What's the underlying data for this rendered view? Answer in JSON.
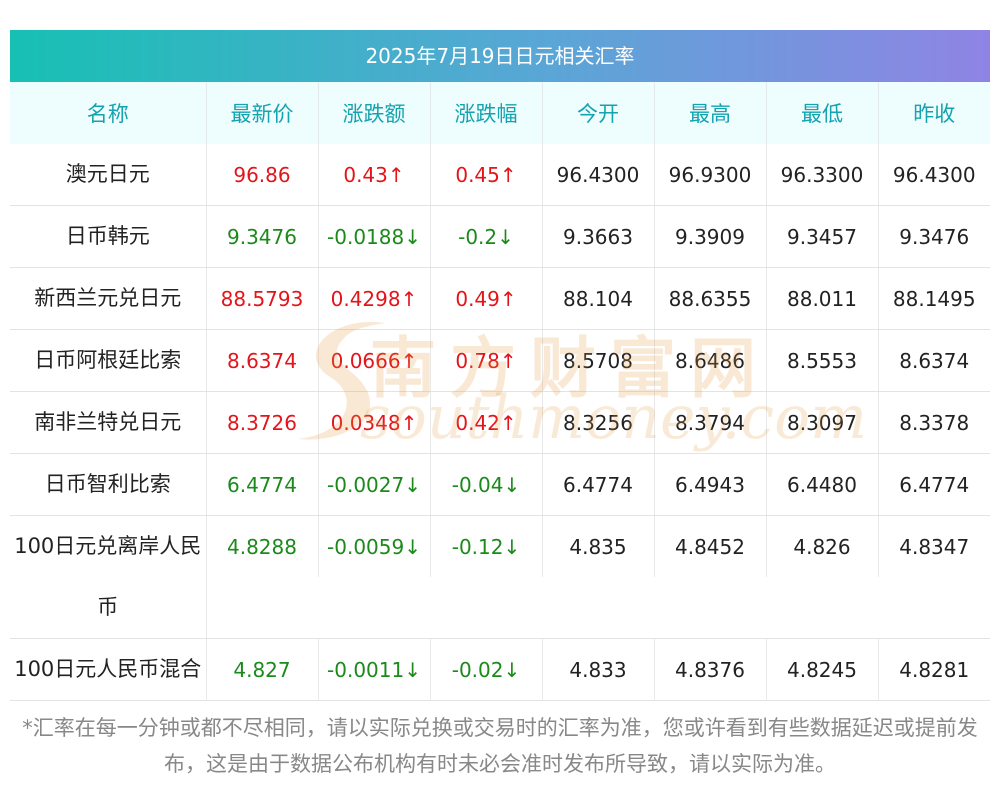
{
  "title": "2025年7月19日日元相关汇率",
  "headers": [
    "名称",
    "最新价",
    "涨跌额",
    "涨跌幅",
    "今开",
    "最高",
    "最低",
    "昨收"
  ],
  "rows": [
    {
      "name": "澳元日元",
      "latest": "96.86",
      "change": "0.43↑",
      "pct": "0.45↑",
      "open": "96.4300",
      "high": "96.9300",
      "low": "96.3300",
      "prev": "96.4300",
      "dir": "up"
    },
    {
      "name": "日币韩元",
      "latest": "9.3476",
      "change": "-0.0188↓",
      "pct": "-0.2↓",
      "open": "9.3663",
      "high": "9.3909",
      "low": "9.3457",
      "prev": "9.3476",
      "dir": "down"
    },
    {
      "name": "新西兰元兑日元",
      "latest": "88.5793",
      "change": "0.4298↑",
      "pct": "0.49↑",
      "open": "88.104",
      "high": "88.6355",
      "low": "88.011",
      "prev": "88.1495",
      "dir": "up"
    },
    {
      "name": "日币阿根廷比索",
      "latest": "8.6374",
      "change": "0.0666↑",
      "pct": "0.78↑",
      "open": "8.5708",
      "high": "8.6486",
      "low": "8.5553",
      "prev": "8.6374",
      "dir": "up"
    },
    {
      "name": "南非兰特兑日元",
      "latest": "8.3726",
      "change": "0.0348↑",
      "pct": "0.42↑",
      "open": "8.3256",
      "high": "8.3794",
      "low": "8.3097",
      "prev": "8.3378",
      "dir": "up"
    },
    {
      "name": "日币智利比索",
      "latest": "6.4774",
      "change": "-0.0027↓",
      "pct": "-0.04↓",
      "open": "6.4774",
      "high": "6.4943",
      "low": "6.4480",
      "prev": "6.4774",
      "dir": "down"
    },
    {
      "name": "100日元兑离岸人民币",
      "latest": "4.8288",
      "change": "-0.0059↓",
      "pct": "-0.12↓",
      "open": "4.835",
      "high": "4.8452",
      "low": "4.826",
      "prev": "4.8347",
      "dir": "down"
    },
    {
      "name": "100日元人民币混合",
      "latest": "4.827",
      "change": "-0.0011↓",
      "pct": "-0.02↓",
      "open": "4.833",
      "high": "4.8376",
      "low": "4.8245",
      "prev": "4.8281",
      "dir": "down"
    }
  ],
  "watermark": {
    "cn": "南方财富网",
    "en": "southmoney.com"
  },
  "note": "*汇率在每一分钟或都不尽相同，请以实际兑换或交易时的汇率为准，您或许看到有些数据延迟或提前发布，这是由于数据公布机构有时未必会准时发布所导致，请以实际为准。",
  "colors": {
    "up": "#e3141a",
    "down": "#1b8a1b",
    "header_text": "#15a3b0",
    "header_bg": "#eefdfd"
  }
}
